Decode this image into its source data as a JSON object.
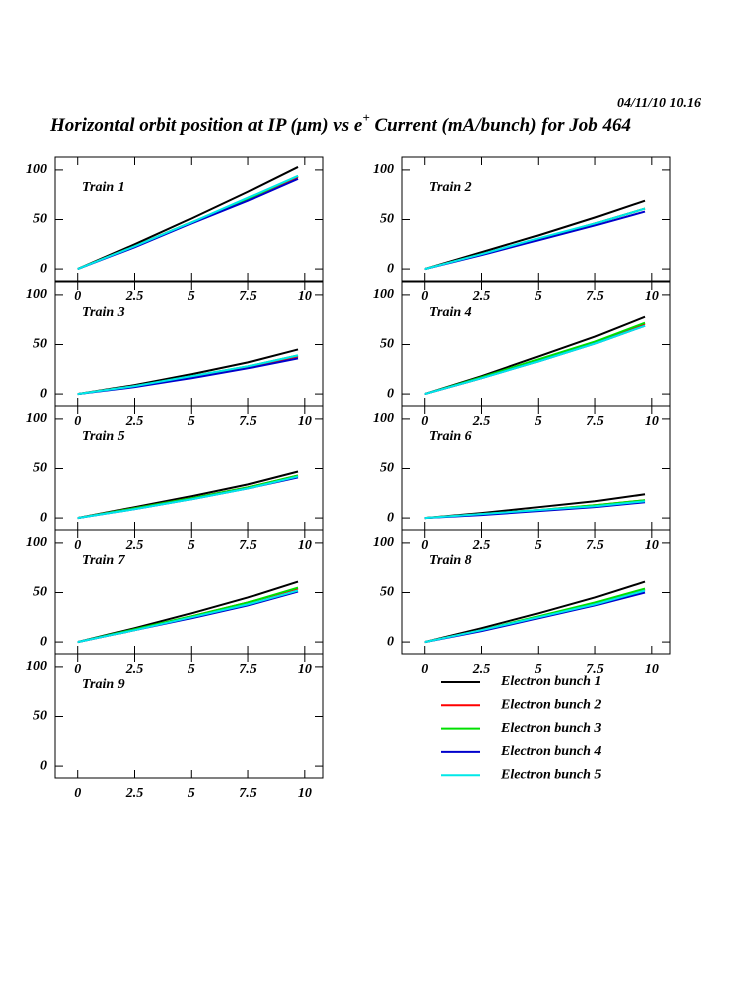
{
  "header": {
    "date": "04/11/10   10.16",
    "title": [
      "Horizontal orbit position at IP (μm) vs e",
      "+",
      " Current (mA/bunch) for Job 464"
    ]
  },
  "legend": [
    {
      "name": "Electron bunch 1",
      "color": "#000000"
    },
    {
      "name": "Electron bunch 2",
      "color": "#ff0000"
    },
    {
      "name": "Electron bunch 3",
      "color": "#00e000"
    },
    {
      "name": "Electron bunch 4",
      "color": "#0000cc"
    },
    {
      "name": "Electron bunch 5",
      "color": "#00e8e8"
    }
  ],
  "chart_data": [
    {
      "type": "line",
      "label": "Train 1",
      "x": [
        0,
        2.5,
        5,
        7.5,
        9.7
      ],
      "xlim": [
        -1,
        10.8
      ],
      "ylim": [
        -12,
        113
      ],
      "xticks": [
        0,
        2.5,
        5,
        7.5,
        10
      ],
      "yticks": [
        0,
        50,
        100
      ],
      "series": [
        {
          "values": [
            0,
            25,
            51,
            78,
            103
          ]
        },
        {
          "values": [
            0,
            23,
            47,
            71,
            93
          ]
        },
        {
          "values": [
            0,
            23,
            47,
            71,
            94
          ]
        },
        {
          "values": [
            0,
            22,
            46,
            69,
            91
          ]
        },
        {
          "values": [
            0,
            23,
            47,
            72,
            94
          ]
        }
      ]
    },
    {
      "type": "line",
      "label": "Train 2",
      "x": [
        0,
        2.5,
        5,
        7.5,
        9.7
      ],
      "xlim": [
        -1,
        10.8
      ],
      "ylim": [
        -12,
        113
      ],
      "xticks": [
        0,
        2.5,
        5,
        7.5,
        10
      ],
      "yticks": [
        0,
        50,
        100
      ],
      "series": [
        {
          "values": [
            0,
            17,
            34,
            52,
            69
          ]
        },
        {
          "values": [
            0,
            15,
            30,
            46,
            61
          ]
        },
        {
          "values": [
            0,
            15,
            30,
            46,
            61
          ]
        },
        {
          "values": [
            0,
            14,
            29,
            44,
            58
          ]
        },
        {
          "values": [
            0,
            15,
            31,
            46,
            61
          ]
        }
      ]
    },
    {
      "type": "line",
      "label": "Train 3",
      "x": [
        0,
        2.5,
        5,
        7.5,
        9.7
      ],
      "xlim": [
        -1,
        10.8
      ],
      "ylim": [
        -12,
        113
      ],
      "xticks": [
        0,
        2.5,
        5,
        7.5,
        10
      ],
      "yticks": [
        0,
        50,
        100
      ],
      "series": [
        {
          "values": [
            0,
            9,
            20,
            32,
            45
          ]
        },
        {
          "values": [
            0,
            8,
            17,
            27,
            38
          ]
        },
        {
          "values": [
            0,
            8,
            18,
            28,
            39
          ]
        },
        {
          "values": [
            0,
            7,
            16,
            26,
            36
          ]
        },
        {
          "values": [
            0,
            8,
            18,
            28,
            39
          ]
        }
      ]
    },
    {
      "type": "line",
      "label": "Train 4",
      "x": [
        0,
        2.5,
        5,
        7.5,
        9.7
      ],
      "xlim": [
        -1,
        10.8
      ],
      "ylim": [
        -12,
        113
      ],
      "xticks": [
        0,
        2.5,
        5,
        7.5,
        10
      ],
      "yticks": [
        0,
        50,
        100
      ],
      "series": [
        {
          "values": [
            0,
            18,
            38,
            58,
            78
          ]
        },
        {
          "values": [
            0,
            16,
            34,
            52,
            71
          ]
        },
        {
          "values": [
            0,
            17,
            35,
            53,
            72
          ]
        },
        {
          "values": [
            0,
            16,
            33,
            51,
            69
          ]
        },
        {
          "values": [
            0,
            16,
            33,
            51,
            69
          ]
        }
      ]
    },
    {
      "type": "line",
      "label": "Train 5",
      "x": [
        0,
        2.5,
        5,
        7.5,
        9.7
      ],
      "xlim": [
        -1,
        10.8
      ],
      "ylim": [
        -12,
        113
      ],
      "xticks": [
        0,
        2.5,
        5,
        7.5,
        10
      ],
      "yticks": [
        0,
        50,
        100
      ],
      "series": [
        {
          "values": [
            0,
            11,
            22,
            34,
            47
          ]
        },
        {
          "values": [
            0,
            10,
            20,
            31,
            43
          ]
        },
        {
          "values": [
            0,
            10,
            20,
            31,
            43
          ]
        },
        {
          "values": [
            0,
            9,
            19,
            30,
            41
          ]
        },
        {
          "values": [
            0,
            9,
            19,
            30,
            42
          ]
        }
      ]
    },
    {
      "type": "line",
      "label": "Train 6",
      "x": [
        0,
        2.5,
        5,
        7.5,
        9.7
      ],
      "xlim": [
        -1,
        10.8
      ],
      "ylim": [
        -12,
        113
      ],
      "xticks": [
        0,
        2.5,
        5,
        7.5,
        10
      ],
      "yticks": [
        0,
        50,
        100
      ],
      "series": [
        {
          "values": [
            0,
            5,
            11,
            17,
            24
          ]
        },
        {
          "values": [
            0,
            4,
            8,
            13,
            18
          ]
        },
        {
          "values": [
            0,
            4,
            8,
            13,
            18
          ]
        },
        {
          "values": [
            0,
            3,
            7,
            11,
            16
          ]
        },
        {
          "values": [
            0,
            4,
            8,
            12,
            17
          ]
        }
      ]
    },
    {
      "type": "line",
      "label": "Train 7",
      "x": [
        0,
        2.5,
        5,
        7.5,
        9.7
      ],
      "xlim": [
        -1,
        10.8
      ],
      "ylim": [
        -12,
        113
      ],
      "xticks": [
        0,
        2.5,
        5,
        7.5,
        10
      ],
      "yticks": [
        0,
        50,
        100
      ],
      "series": [
        {
          "values": [
            0,
            14,
            29,
            45,
            61
          ]
        },
        {
          "values": [
            0,
            12,
            26,
            40,
            54
          ]
        },
        {
          "values": [
            0,
            13,
            26,
            40,
            55
          ]
        },
        {
          "values": [
            0,
            12,
            24,
            37,
            51
          ]
        },
        {
          "values": [
            0,
            12,
            25,
            38,
            52
          ]
        }
      ]
    },
    {
      "type": "line",
      "label": "Train 8",
      "x": [
        0,
        2.5,
        5,
        7.5,
        9.7
      ],
      "xlim": [
        -1,
        10.8
      ],
      "ylim": [
        -12,
        113
      ],
      "xticks": [
        0,
        2.5,
        5,
        7.5,
        10
      ],
      "yticks": [
        0,
        50,
        100
      ],
      "series": [
        {
          "values": [
            0,
            14,
            29,
            45,
            61
          ]
        },
        {
          "values": [
            0,
            12,
            25,
            39,
            53
          ]
        },
        {
          "values": [
            0,
            12,
            26,
            40,
            54
          ]
        },
        {
          "values": [
            0,
            11,
            24,
            37,
            50
          ]
        },
        {
          "values": [
            0,
            12,
            25,
            38,
            52
          ]
        }
      ]
    },
    {
      "type": "line",
      "label": "Train 9",
      "xlim": [
        -1,
        10.8
      ],
      "ylim": [
        -12,
        113
      ],
      "xticks": [
        0,
        2.5,
        5,
        7.5,
        10
      ],
      "yticks": [
        0,
        50,
        100
      ]
    }
  ]
}
